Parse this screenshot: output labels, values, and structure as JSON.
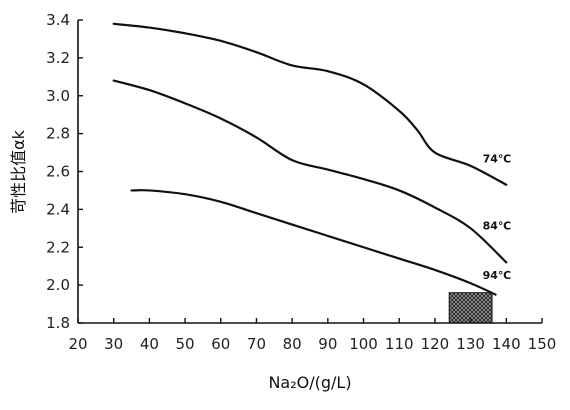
{
  "chart_data": {
    "type": "line",
    "xlabel": "Na₂O/(g/L)",
    "ylabel": "苛性比值αk",
    "xlim": [
      20,
      150
    ],
    "ylim": [
      1.8,
      3.4
    ],
    "x_ticks": [
      20,
      30,
      40,
      50,
      60,
      70,
      80,
      90,
      100,
      110,
      120,
      130,
      140,
      150
    ],
    "y_ticks": [
      1.8,
      2.0,
      2.2,
      2.4,
      2.6,
      2.8,
      3.0,
      3.2,
      3.4
    ],
    "x_tick_labels": [
      "20",
      "30",
      "40",
      "50",
      "60",
      "70",
      "80",
      "90",
      "100",
      "110",
      "120",
      "130",
      "140",
      "150"
    ],
    "y_tick_labels": [
      "1.8",
      "2.0",
      "2.2",
      "2.4",
      "2.6",
      "2.8",
      "3.0",
      "3.2",
      "3.4"
    ],
    "grid": false,
    "series": [
      {
        "name": "74℃",
        "x": [
          30,
          40,
          50,
          60,
          70,
          80,
          90,
          100,
          110,
          115,
          120,
          130,
          140
        ],
        "y": [
          3.38,
          3.36,
          3.33,
          3.29,
          3.23,
          3.16,
          3.13,
          3.06,
          2.92,
          2.82,
          2.7,
          2.63,
          2.53
        ]
      },
      {
        "name": "84℃",
        "x": [
          30,
          40,
          50,
          60,
          70,
          80,
          90,
          100,
          110,
          120,
          130,
          140
        ],
        "y": [
          3.08,
          3.03,
          2.96,
          2.88,
          2.78,
          2.66,
          2.61,
          2.56,
          2.5,
          2.41,
          2.3,
          2.12
        ]
      },
      {
        "name": "94℃",
        "x": [
          35,
          40,
          50,
          60,
          70,
          80,
          90,
          100,
          110,
          120,
          130,
          137
        ],
        "y": [
          2.5,
          2.5,
          2.48,
          2.44,
          2.38,
          2.32,
          2.26,
          2.2,
          2.14,
          2.08,
          2.01,
          1.95
        ]
      }
    ],
    "shaded_region": {
      "x": [
        124,
        136
      ],
      "y": [
        1.8,
        1.96
      ]
    }
  }
}
